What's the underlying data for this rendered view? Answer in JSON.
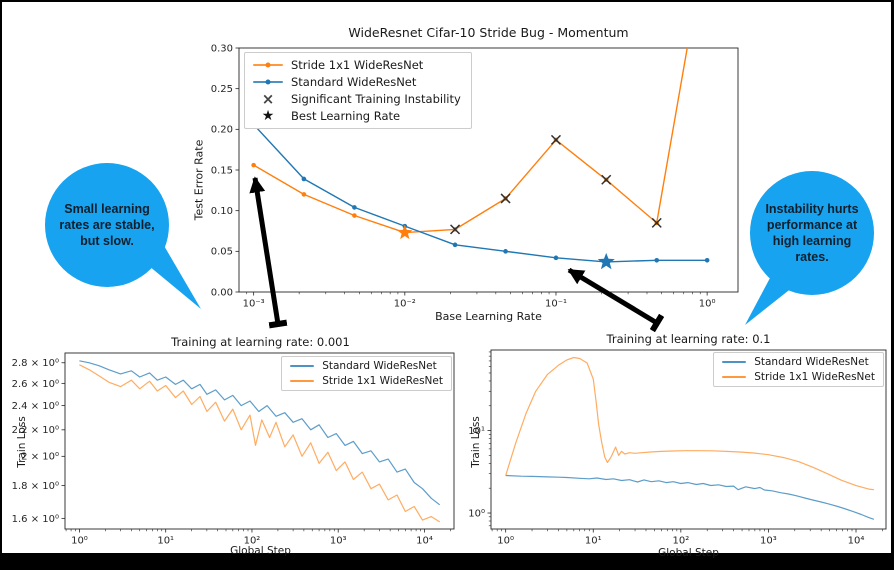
{
  "frame": {
    "background": "#000000",
    "canvas": "#ffffff"
  },
  "callouts": {
    "color": "#17a3ef",
    "text_color": "#0f1f2d",
    "left": {
      "text": "Small learning rates are stable, but slow."
    },
    "right": {
      "text": "Instability hurts performance at high learning rates."
    }
  },
  "chart_data": [
    {
      "type": "line",
      "title": "WideResnet Cifar-10 Stride Bug - Momentum",
      "xlabel": "Base Learning Rate",
      "ylabel": "Test Error Rate",
      "xscale": "log",
      "yscale": "linear",
      "xlim": [
        0.0008,
        1.6
      ],
      "ylim": [
        0.0,
        0.3
      ],
      "xminor": true,
      "yminor": false,
      "xticks": [
        {
          "v": 0.001,
          "label": "10⁻³"
        },
        {
          "v": 0.01,
          "label": "10⁻²"
        },
        {
          "v": 0.1,
          "label": "10⁻¹"
        },
        {
          "v": 1.0,
          "label": "10⁰"
        }
      ],
      "yticks": [
        {
          "v": 0.0,
          "label": "0.00"
        },
        {
          "v": 0.05,
          "label": "0.05"
        },
        {
          "v": 0.1,
          "label": "0.10"
        },
        {
          "v": 0.15,
          "label": "0.15"
        },
        {
          "v": 0.2,
          "label": "0.20"
        },
        {
          "v": 0.25,
          "label": "0.25"
        },
        {
          "v": 0.3,
          "label": "0.30"
        }
      ],
      "series": [
        {
          "name": "Stride 1x1 WideResNet",
          "color": "#ff7f0e",
          "opacity": 1,
          "width": 1.4,
          "marker": "dot",
          "points": [
            [
              0.001,
              0.156
            ],
            [
              0.00215,
              0.12
            ],
            [
              0.00464,
              0.094
            ],
            [
              0.01,
              0.073
            ],
            [
              0.0215,
              0.077
            ],
            [
              0.0464,
              0.115
            ],
            [
              0.1,
              0.187
            ],
            [
              0.215,
              0.138
            ],
            [
              0.464,
              0.085
            ],
            [
              1.0,
              0.44
            ]
          ]
        },
        {
          "name": "Standard WideResNet",
          "color": "#1f77b4",
          "opacity": 1,
          "width": 1.4,
          "marker": "dot",
          "points": [
            [
              0.001,
              0.206
            ],
            [
              0.00215,
              0.139
            ],
            [
              0.00464,
              0.104
            ],
            [
              0.01,
              0.081
            ],
            [
              0.0215,
              0.058
            ],
            [
              0.0464,
              0.05
            ],
            [
              0.1,
              0.042
            ],
            [
              0.215,
              0.037
            ],
            [
              0.464,
              0.039
            ],
            [
              1.0,
              0.039
            ]
          ]
        }
      ],
      "annotations": [
        {
          "type": "x",
          "color": "#2f2f2f",
          "points": [
            [
              0.0215,
              0.077
            ],
            [
              0.0464,
              0.115
            ],
            [
              0.1,
              0.187
            ],
            [
              0.215,
              0.138
            ],
            [
              0.464,
              0.085
            ]
          ]
        },
        {
          "type": "star",
          "x": 0.01,
          "y": 0.073,
          "color": "#ff7f0e",
          "size": 8
        },
        {
          "type": "star",
          "x": 0.215,
          "y": 0.037,
          "color": "#1f77b4",
          "size": 9
        }
      ],
      "legend": [
        {
          "label": "Stride 1x1 WideResNet",
          "swatch": "line-dot",
          "color": "#ff7f0e"
        },
        {
          "label": "Standard WideResNet",
          "swatch": "line-dot",
          "color": "#1f77b4"
        },
        {
          "label": "Significant Training Instability",
          "swatch": "x",
          "color": "#444444"
        },
        {
          "label": "Best Learning Rate",
          "swatch": "star",
          "color": "#111111"
        }
      ],
      "legend_position": "upper-left"
    },
    {
      "type": "line",
      "title": "Training at learning rate: 0.001",
      "xlabel": "Global Step",
      "ylabel": "Train Loss",
      "xscale": "log",
      "yscale": "log",
      "xlim": [
        0.68,
        22000
      ],
      "ylim": [
        1.54,
        2.9
      ],
      "xminor": true,
      "yminor": false,
      "xticks": [
        {
          "v": 1,
          "label": "10⁰"
        },
        {
          "v": 10,
          "label": "10¹"
        },
        {
          "v": 100,
          "label": "10²"
        },
        {
          "v": 1000,
          "label": "10³"
        },
        {
          "v": 10000,
          "label": "10⁴"
        }
      ],
      "yticks": [
        {
          "v": 2.8,
          "label": "2.8 × 10⁰"
        },
        {
          "v": 2.6,
          "label": "2.6 × 10⁰"
        },
        {
          "v": 2.4,
          "label": "2.4 × 10⁰"
        },
        {
          "v": 2.2,
          "label": "2.2 × 10⁰"
        },
        {
          "v": 2.0,
          "label": "2 × 10⁰"
        },
        {
          "v": 1.8,
          "label": "1.8 × 10⁰"
        },
        {
          "v": 1.6,
          "label": "1.6 × 10⁰"
        }
      ],
      "series": [
        {
          "name": "Standard WideResNet",
          "color": "#1f77b4",
          "opacity": 0.72,
          "width": 1.2,
          "marker": "none",
          "points": [
            [
              1,
              2.82
            ],
            [
              1.3,
              2.8
            ],
            [
              1.7,
              2.77
            ],
            [
              2.2,
              2.73
            ],
            [
              3,
              2.69
            ],
            [
              4,
              2.72
            ],
            [
              5,
              2.66
            ],
            [
              6.5,
              2.7
            ],
            [
              8,
              2.63
            ],
            [
              10,
              2.66
            ],
            [
              13,
              2.59
            ],
            [
              16,
              2.63
            ],
            [
              20,
              2.55
            ],
            [
              25,
              2.59
            ],
            [
              30,
              2.5
            ],
            [
              38,
              2.54
            ],
            [
              48,
              2.45
            ],
            [
              60,
              2.49
            ],
            [
              75,
              2.4
            ],
            [
              95,
              2.44
            ],
            [
              120,
              2.35
            ],
            [
              150,
              2.4
            ],
            [
              190,
              2.31
            ],
            [
              240,
              2.34
            ],
            [
              300,
              2.26
            ],
            [
              380,
              2.29
            ],
            [
              480,
              2.2
            ],
            [
              600,
              2.24
            ],
            [
              760,
              2.14
            ],
            [
              950,
              2.17
            ],
            [
              1200,
              2.08
            ],
            [
              1500,
              2.11
            ],
            [
              1900,
              2.02
            ],
            [
              2400,
              2.04
            ],
            [
              3000,
              1.96
            ],
            [
              3800,
              1.98
            ],
            [
              4800,
              1.89
            ],
            [
              6000,
              1.91
            ],
            [
              7600,
              1.82
            ],
            [
              9500,
              1.78
            ],
            [
              12000,
              1.72
            ],
            [
              15000,
              1.68
            ]
          ]
        },
        {
          "name": "Stride 1x1 WideResNet",
          "color": "#ff7f0e",
          "opacity": 0.65,
          "width": 1.2,
          "marker": "none",
          "points": [
            [
              1,
              2.78
            ],
            [
              1.3,
              2.73
            ],
            [
              1.7,
              2.67
            ],
            [
              2.2,
              2.61
            ],
            [
              3,
              2.57
            ],
            [
              4,
              2.63
            ],
            [
              5,
              2.55
            ],
            [
              6.5,
              2.62
            ],
            [
              8,
              2.53
            ],
            [
              10,
              2.58
            ],
            [
              13,
              2.47
            ],
            [
              16,
              2.53
            ],
            [
              20,
              2.41
            ],
            [
              25,
              2.48
            ],
            [
              30,
              2.35
            ],
            [
              38,
              2.43
            ],
            [
              48,
              2.27
            ],
            [
              60,
              2.37
            ],
            [
              75,
              2.2
            ],
            [
              95,
              2.32
            ],
            [
              110,
              2.08
            ],
            [
              130,
              2.28
            ],
            [
              160,
              2.14
            ],
            [
              190,
              2.26
            ],
            [
              240,
              2.07
            ],
            [
              300,
              2.16
            ],
            [
              380,
              2.0
            ],
            [
              480,
              2.1
            ],
            [
              600,
              1.95
            ],
            [
              760,
              2.03
            ],
            [
              950,
              1.9
            ],
            [
              1200,
              1.96
            ],
            [
              1500,
              1.84
            ],
            [
              1900,
              1.89
            ],
            [
              2400,
              1.78
            ],
            [
              3000,
              1.81
            ],
            [
              3800,
              1.71
            ],
            [
              4800,
              1.74
            ],
            [
              6000,
              1.64
            ],
            [
              7600,
              1.67
            ],
            [
              9500,
              1.59
            ],
            [
              12000,
              1.61
            ],
            [
              15000,
              1.58
            ]
          ]
        }
      ],
      "annotations": [],
      "legend": [
        {
          "label": "Standard WideResNet",
          "swatch": "line",
          "color": "#1f77b4"
        },
        {
          "label": "Stride 1x1 WideResNet",
          "swatch": "line",
          "color": "#ff7f0e"
        }
      ],
      "legend_position": "upper-right"
    },
    {
      "type": "line",
      "title": "Training at learning rate: 0.1",
      "xlabel": "Global Step",
      "ylabel": "Train Loss",
      "xscale": "log",
      "yscale": "log",
      "xlim": [
        0.68,
        22000
      ],
      "ylim": [
        0.64,
        95
      ],
      "xminor": true,
      "yminor": true,
      "xticks": [
        {
          "v": 1,
          "label": "10⁰"
        },
        {
          "v": 10,
          "label": "10¹"
        },
        {
          "v": 100,
          "label": "10²"
        },
        {
          "v": 1000,
          "label": "10³"
        },
        {
          "v": 10000,
          "label": "10⁴"
        }
      ],
      "yticks": [
        {
          "v": 1,
          "label": "10⁰"
        },
        {
          "v": 10,
          "label": "10¹"
        }
      ],
      "series": [
        {
          "name": "Standard WideResNet",
          "color": "#1f77b4",
          "opacity": 0.72,
          "width": 1.2,
          "marker": "none",
          "points": [
            [
              1,
              2.85
            ],
            [
              1.5,
              2.8
            ],
            [
              2,
              2.78
            ],
            [
              3,
              2.74
            ],
            [
              4,
              2.72
            ],
            [
              5,
              2.7
            ],
            [
              7,
              2.64
            ],
            [
              9,
              2.6
            ],
            [
              11,
              2.66
            ],
            [
              14,
              2.55
            ],
            [
              17,
              2.6
            ],
            [
              21,
              2.48
            ],
            [
              26,
              2.54
            ],
            [
              32,
              2.38
            ],
            [
              38,
              2.52
            ],
            [
              46,
              2.4
            ],
            [
              56,
              2.46
            ],
            [
              68,
              2.34
            ],
            [
              82,
              2.4
            ],
            [
              100,
              2.28
            ],
            [
              120,
              2.34
            ],
            [
              150,
              2.22
            ],
            [
              180,
              2.28
            ],
            [
              220,
              2.16
            ],
            [
              270,
              2.2
            ],
            [
              330,
              2.1
            ],
            [
              400,
              2.12
            ],
            [
              450,
              1.92
            ],
            [
              550,
              2.08
            ],
            [
              700,
              1.98
            ],
            [
              800,
              2.04
            ],
            [
              900,
              1.9
            ],
            [
              1100,
              1.86
            ],
            [
              1400,
              1.76
            ],
            [
              1700,
              1.7
            ],
            [
              2100,
              1.62
            ],
            [
              2600,
              1.52
            ],
            [
              3200,
              1.44
            ],
            [
              4000,
              1.36
            ],
            [
              5000,
              1.28
            ],
            [
              6200,
              1.2
            ],
            [
              7600,
              1.12
            ],
            [
              9300,
              1.04
            ],
            [
              11500,
              0.96
            ],
            [
              14000,
              0.88
            ],
            [
              16000,
              0.84
            ]
          ]
        },
        {
          "name": "Stride 1x1 WideResNet",
          "color": "#ff7f0e",
          "opacity": 0.65,
          "width": 1.2,
          "marker": "none",
          "points": [
            [
              1,
              2.85
            ],
            [
              1.3,
              7
            ],
            [
              1.7,
              16
            ],
            [
              2.2,
              30
            ],
            [
              3,
              48
            ],
            [
              4,
              62
            ],
            [
              5,
              72
            ],
            [
              6,
              77
            ],
            [
              7,
              75
            ],
            [
              8.5,
              66
            ],
            [
              10,
              42
            ],
            [
              10.8,
              22
            ],
            [
              11.5,
              12
            ],
            [
              12.5,
              7.2
            ],
            [
              13.5,
              4.8
            ],
            [
              14.5,
              4.1
            ],
            [
              16,
              4.8
            ],
            [
              18,
              6.3
            ],
            [
              19.5,
              5.0
            ],
            [
              21,
              5.6
            ],
            [
              23,
              5.2
            ],
            [
              26,
              5.4
            ],
            [
              30,
              5.3
            ],
            [
              36,
              5.4
            ],
            [
              45,
              5.5
            ],
            [
              60,
              5.6
            ],
            [
              80,
              5.65
            ],
            [
              110,
              5.7
            ],
            [
              160,
              5.7
            ],
            [
              230,
              5.68
            ],
            [
              330,
              5.6
            ],
            [
              470,
              5.5
            ],
            [
              680,
              5.35
            ],
            [
              1000,
              5.1
            ],
            [
              1500,
              4.7
            ],
            [
              2200,
              4.2
            ],
            [
              3200,
              3.6
            ],
            [
              4700,
              3.0
            ],
            [
              6800,
              2.5
            ],
            [
              10000,
              2.15
            ],
            [
              14000,
              1.95
            ],
            [
              16000,
              1.92
            ]
          ]
        }
      ],
      "annotations": [],
      "legend": [
        {
          "label": "Standard WideResNet",
          "swatch": "line",
          "color": "#1f77b4"
        },
        {
          "label": "Stride 1x1 WideResNet",
          "swatch": "line",
          "color": "#ff7f0e"
        }
      ],
      "legend_position": "upper-right"
    }
  ]
}
